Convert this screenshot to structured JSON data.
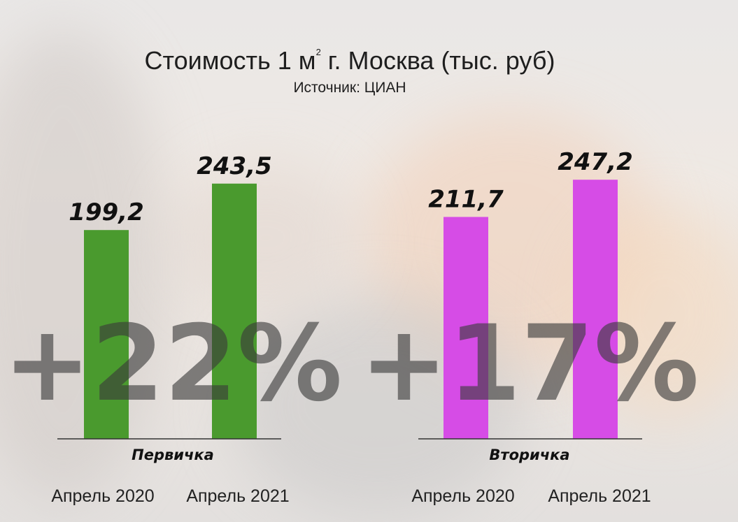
{
  "chart_data": {
    "type": "bar",
    "title_main": "Стоимость 1 м",
    "title_sup": "2",
    "title_rest": " г. Москва (тыс. руб)",
    "subtitle": "Источник: ЦИАН",
    "ylim": [
      0,
      300
    ],
    "groups": [
      {
        "name": "Первичка",
        "color": "#4a9a2e",
        "categories": [
          "Апрель 2020",
          "Апрель 2021"
        ],
        "values": [
          199.2,
          243.5
        ],
        "value_labels": [
          "199,2",
          "243,5"
        ],
        "change_label": "+22%"
      },
      {
        "name": "Вторичка",
        "color": "#d64ce6",
        "categories": [
          "Апрель 2020",
          "Апрель 2021"
        ],
        "values": [
          211.7,
          247.2
        ],
        "value_labels": [
          "211,7",
          "247,2"
        ],
        "change_label": "+17%"
      }
    ]
  }
}
